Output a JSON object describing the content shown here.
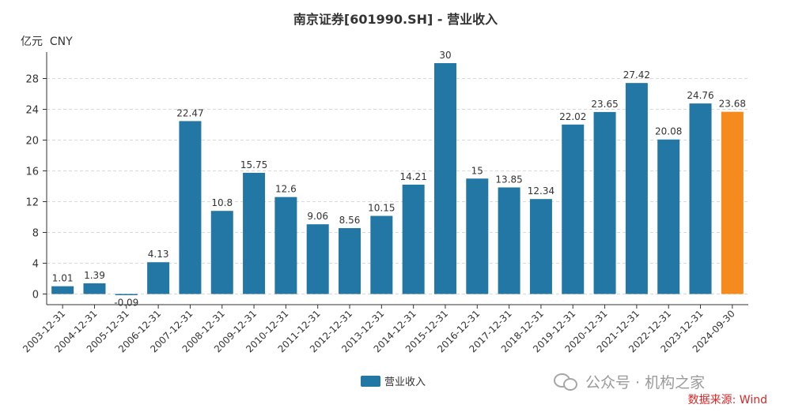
{
  "chart_data": {
    "type": "bar",
    "title": "南京证券[601990.SH] - 营业收入",
    "ylabel": "亿元  CNY",
    "ylim": [
      -2,
      31
    ],
    "yticks": [
      0,
      4,
      8,
      12,
      16,
      20,
      24,
      28
    ],
    "grid": true,
    "legend_position": "bottom",
    "categories": [
      "2003-12-31",
      "2004-12-31",
      "2005-12-31",
      "2006-12-31",
      "2007-12-31",
      "2008-12-31",
      "2009-12-31",
      "2010-12-31",
      "2011-12-31",
      "2012-12-31",
      "2013-12-31",
      "2014-12-31",
      "2015-12-31",
      "2016-12-31",
      "2017-12-31",
      "2018-12-31",
      "2019-12-31",
      "2020-12-31",
      "2021-12-31",
      "2022-12-31",
      "2023-12-31",
      "2024-09-30"
    ],
    "series": [
      {
        "name": "营业收入",
        "values": [
          1.01,
          1.39,
          -0.09,
          4.13,
          22.47,
          10.8,
          15.75,
          12.6,
          9.06,
          8.56,
          10.15,
          14.21,
          30,
          15,
          13.85,
          12.34,
          22.02,
          23.65,
          27.42,
          20.08,
          24.76,
          23.68
        ],
        "labels": [
          "1.01",
          "1.39",
          "-0.09",
          "4.13",
          "22.47",
          "10.8",
          "15.75",
          "12.6",
          "9.06",
          "8.56",
          "10.15",
          "14.21",
          "30",
          "15",
          "13.85",
          "12.34",
          "22.02",
          "23.65",
          "27.42",
          "20.08",
          "24.76",
          "23.68"
        ]
      }
    ],
    "colors": {
      "bar": "#2277a4",
      "highlight": "#f58b1f"
    },
    "highlight_index": 21
  },
  "watermark": {
    "text": "公众号 · 机构之家",
    "icon": "wechat-icon"
  },
  "source_note": "数据来源: Wind"
}
